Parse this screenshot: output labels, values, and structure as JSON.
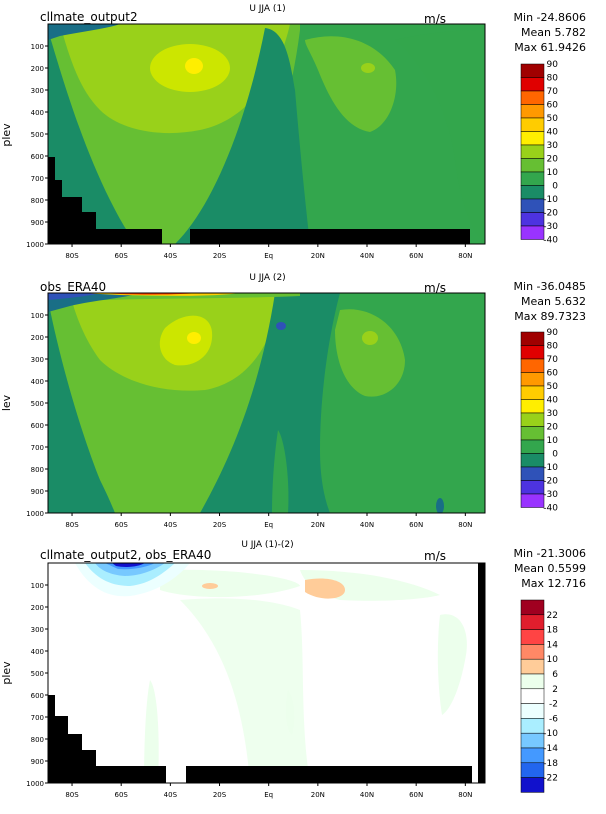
{
  "colors": {
    "u_scale": [
      "#a00000",
      "#e00000",
      "#ff3300",
      "#ff6600",
      "#ff9900",
      "#ffcc00",
      "#ffee00",
      "#cce600",
      "#99d11a",
      "#66bf33",
      "#33a64d",
      "#1a8c66",
      "#196e86",
      "#2f52b8",
      "#4d33e0",
      "#9933ff"
    ],
    "diff_scale": [
      "#a00020",
      "#e01e2d",
      "#ff4444",
      "#ff8866",
      "#ffcc99",
      "#ecffec",
      "#ffffff",
      "#ecffff",
      "#aaeeff",
      "#77c8ff",
      "#4499ff",
      "#2266ee",
      "#1111cc"
    ]
  },
  "chart_data": [
    {
      "type": "heatmap",
      "dataset": "cllmate_output2",
      "title": "U JJA (1)",
      "units": "m/s",
      "stats": {
        "min": "Min -24.8606",
        "mean": "Mean 5.782",
        "max": "Max 61.9426"
      },
      "ylabel": "plev",
      "y_ticks": [
        "100",
        "200",
        "300",
        "400",
        "500",
        "600",
        "700",
        "800",
        "900",
        "1000"
      ],
      "x_ticks": [
        "80S",
        "60S",
        "40S",
        "20S",
        "Eq",
        "20N",
        "40N",
        "60N",
        "80N"
      ],
      "colorbar_labels": [
        "90",
        "80",
        "70",
        "60",
        "50",
        "40",
        "30",
        "20",
        "10",
        "0",
        "-10",
        "-20",
        "-30",
        "-40"
      ],
      "levels": [
        90,
        80,
        70,
        60,
        50,
        40,
        30,
        20,
        10,
        0,
        -10,
        -20,
        -30,
        -40
      ]
    },
    {
      "type": "heatmap",
      "dataset": "obs_ERA40",
      "title": "U JJA (2)",
      "units": "m/s",
      "stats": {
        "min": "Min -36.0485",
        "mean": "Mean 5.632",
        "max": "Max 89.7323"
      },
      "ylabel": "lev",
      "y_ticks": [
        "100",
        "200",
        "300",
        "400",
        "500",
        "600",
        "700",
        "800",
        "900",
        "1000"
      ],
      "x_ticks": [
        "80S",
        "60S",
        "40S",
        "20S",
        "Eq",
        "20N",
        "40N",
        "60N",
        "80N"
      ],
      "colorbar_labels": [
        "90",
        "80",
        "70",
        "60",
        "50",
        "40",
        "30",
        "20",
        "10",
        "0",
        "-10",
        "-20",
        "-30",
        "-40"
      ],
      "levels": [
        90,
        80,
        70,
        60,
        50,
        40,
        30,
        20,
        10,
        0,
        -10,
        -20,
        -30,
        -40
      ]
    },
    {
      "type": "heatmap",
      "dataset": "cllmate_output2, obs_ERA40",
      "title": "U JJA (1)-(2)",
      "units": "m/s",
      "stats": {
        "min": "Min -21.3006",
        "mean": "Mean 0.5599",
        "max": "Max 12.716"
      },
      "ylabel": "plev",
      "y_ticks": [
        "100",
        "200",
        "300",
        "400",
        "500",
        "600",
        "700",
        "800",
        "900",
        "1000"
      ],
      "x_ticks": [
        "80S",
        "60S",
        "40S",
        "20S",
        "Eq",
        "20N",
        "40N",
        "60N",
        "80N"
      ],
      "colorbar_labels": [
        "22",
        "18",
        "14",
        "10",
        "6",
        "2",
        "-2",
        "-6",
        "-10",
        "-14",
        "-18",
        "-22"
      ],
      "levels": [
        22,
        18,
        14,
        10,
        6,
        2,
        -2,
        -6,
        -10,
        -14,
        -18,
        -22
      ]
    }
  ]
}
